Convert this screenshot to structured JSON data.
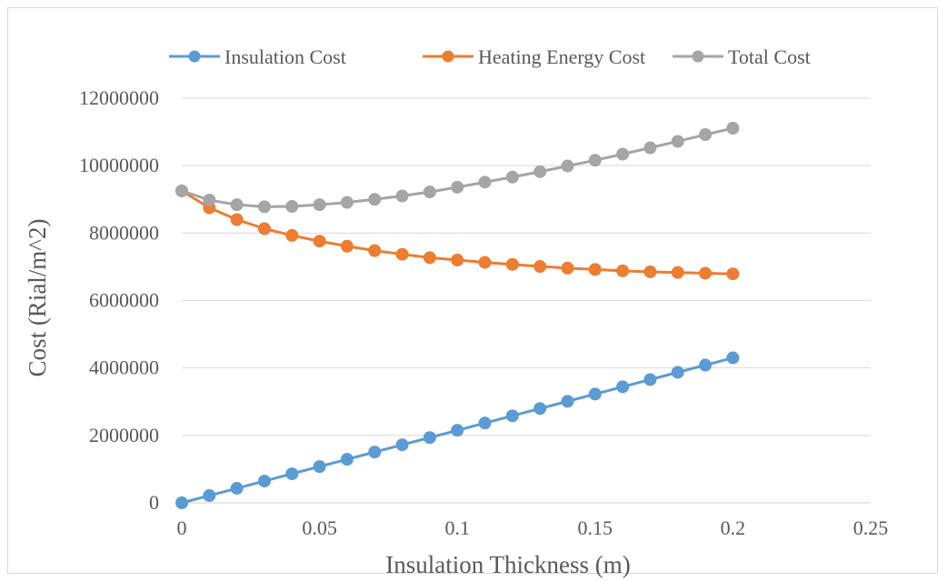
{
  "chart_data": {
    "type": "line",
    "title": "",
    "xlabel": "Insulation Thickness (m)",
    "ylabel": "Cost (Rial/m^2)",
    "xlim": [
      0,
      0.25
    ],
    "ylim": [
      0,
      12000000
    ],
    "x_ticks": [
      "0",
      "0.05",
      "0.1",
      "0.15",
      "0.2",
      "0.25"
    ],
    "y_ticks": [
      "0",
      "2000000",
      "4000000",
      "6000000",
      "8000000",
      "10000000",
      "12000000"
    ],
    "grid": "horizontal",
    "legend_position": "top",
    "x": [
      0,
      0.01,
      0.02,
      0.03,
      0.04,
      0.05,
      0.06,
      0.07,
      0.08,
      0.09,
      0.1,
      0.11,
      0.12,
      0.13,
      0.14,
      0.15,
      0.16,
      0.17,
      0.18,
      0.19,
      0.2
    ],
    "series": [
      {
        "name": "Insulation Cost",
        "color": "#5b9bd5",
        "values": [
          0,
          215000,
          430000,
          645000,
          860000,
          1075000,
          1290000,
          1505000,
          1720000,
          1935000,
          2150000,
          2365000,
          2580000,
          2795000,
          3010000,
          3225000,
          3440000,
          3655000,
          3870000,
          4085000,
          4300000
        ]
      },
      {
        "name": "Heating Energy Cost",
        "color": "#ed7d31",
        "values": [
          9250000,
          8750000,
          8400000,
          8130000,
          7930000,
          7760000,
          7610000,
          7480000,
          7370000,
          7270000,
          7200000,
          7130000,
          7070000,
          7010000,
          6960000,
          6920000,
          6880000,
          6850000,
          6830000,
          6810000,
          6790000
        ]
      },
      {
        "name": "Total Cost",
        "color": "#a5a5a5",
        "values": [
          9250000,
          8980000,
          8840000,
          8780000,
          8790000,
          8840000,
          8910000,
          9000000,
          9100000,
          9220000,
          9360000,
          9510000,
          9660000,
          9820000,
          9990000,
          10160000,
          10340000,
          10530000,
          10720000,
          10920000,
          11110000
        ]
      }
    ]
  }
}
